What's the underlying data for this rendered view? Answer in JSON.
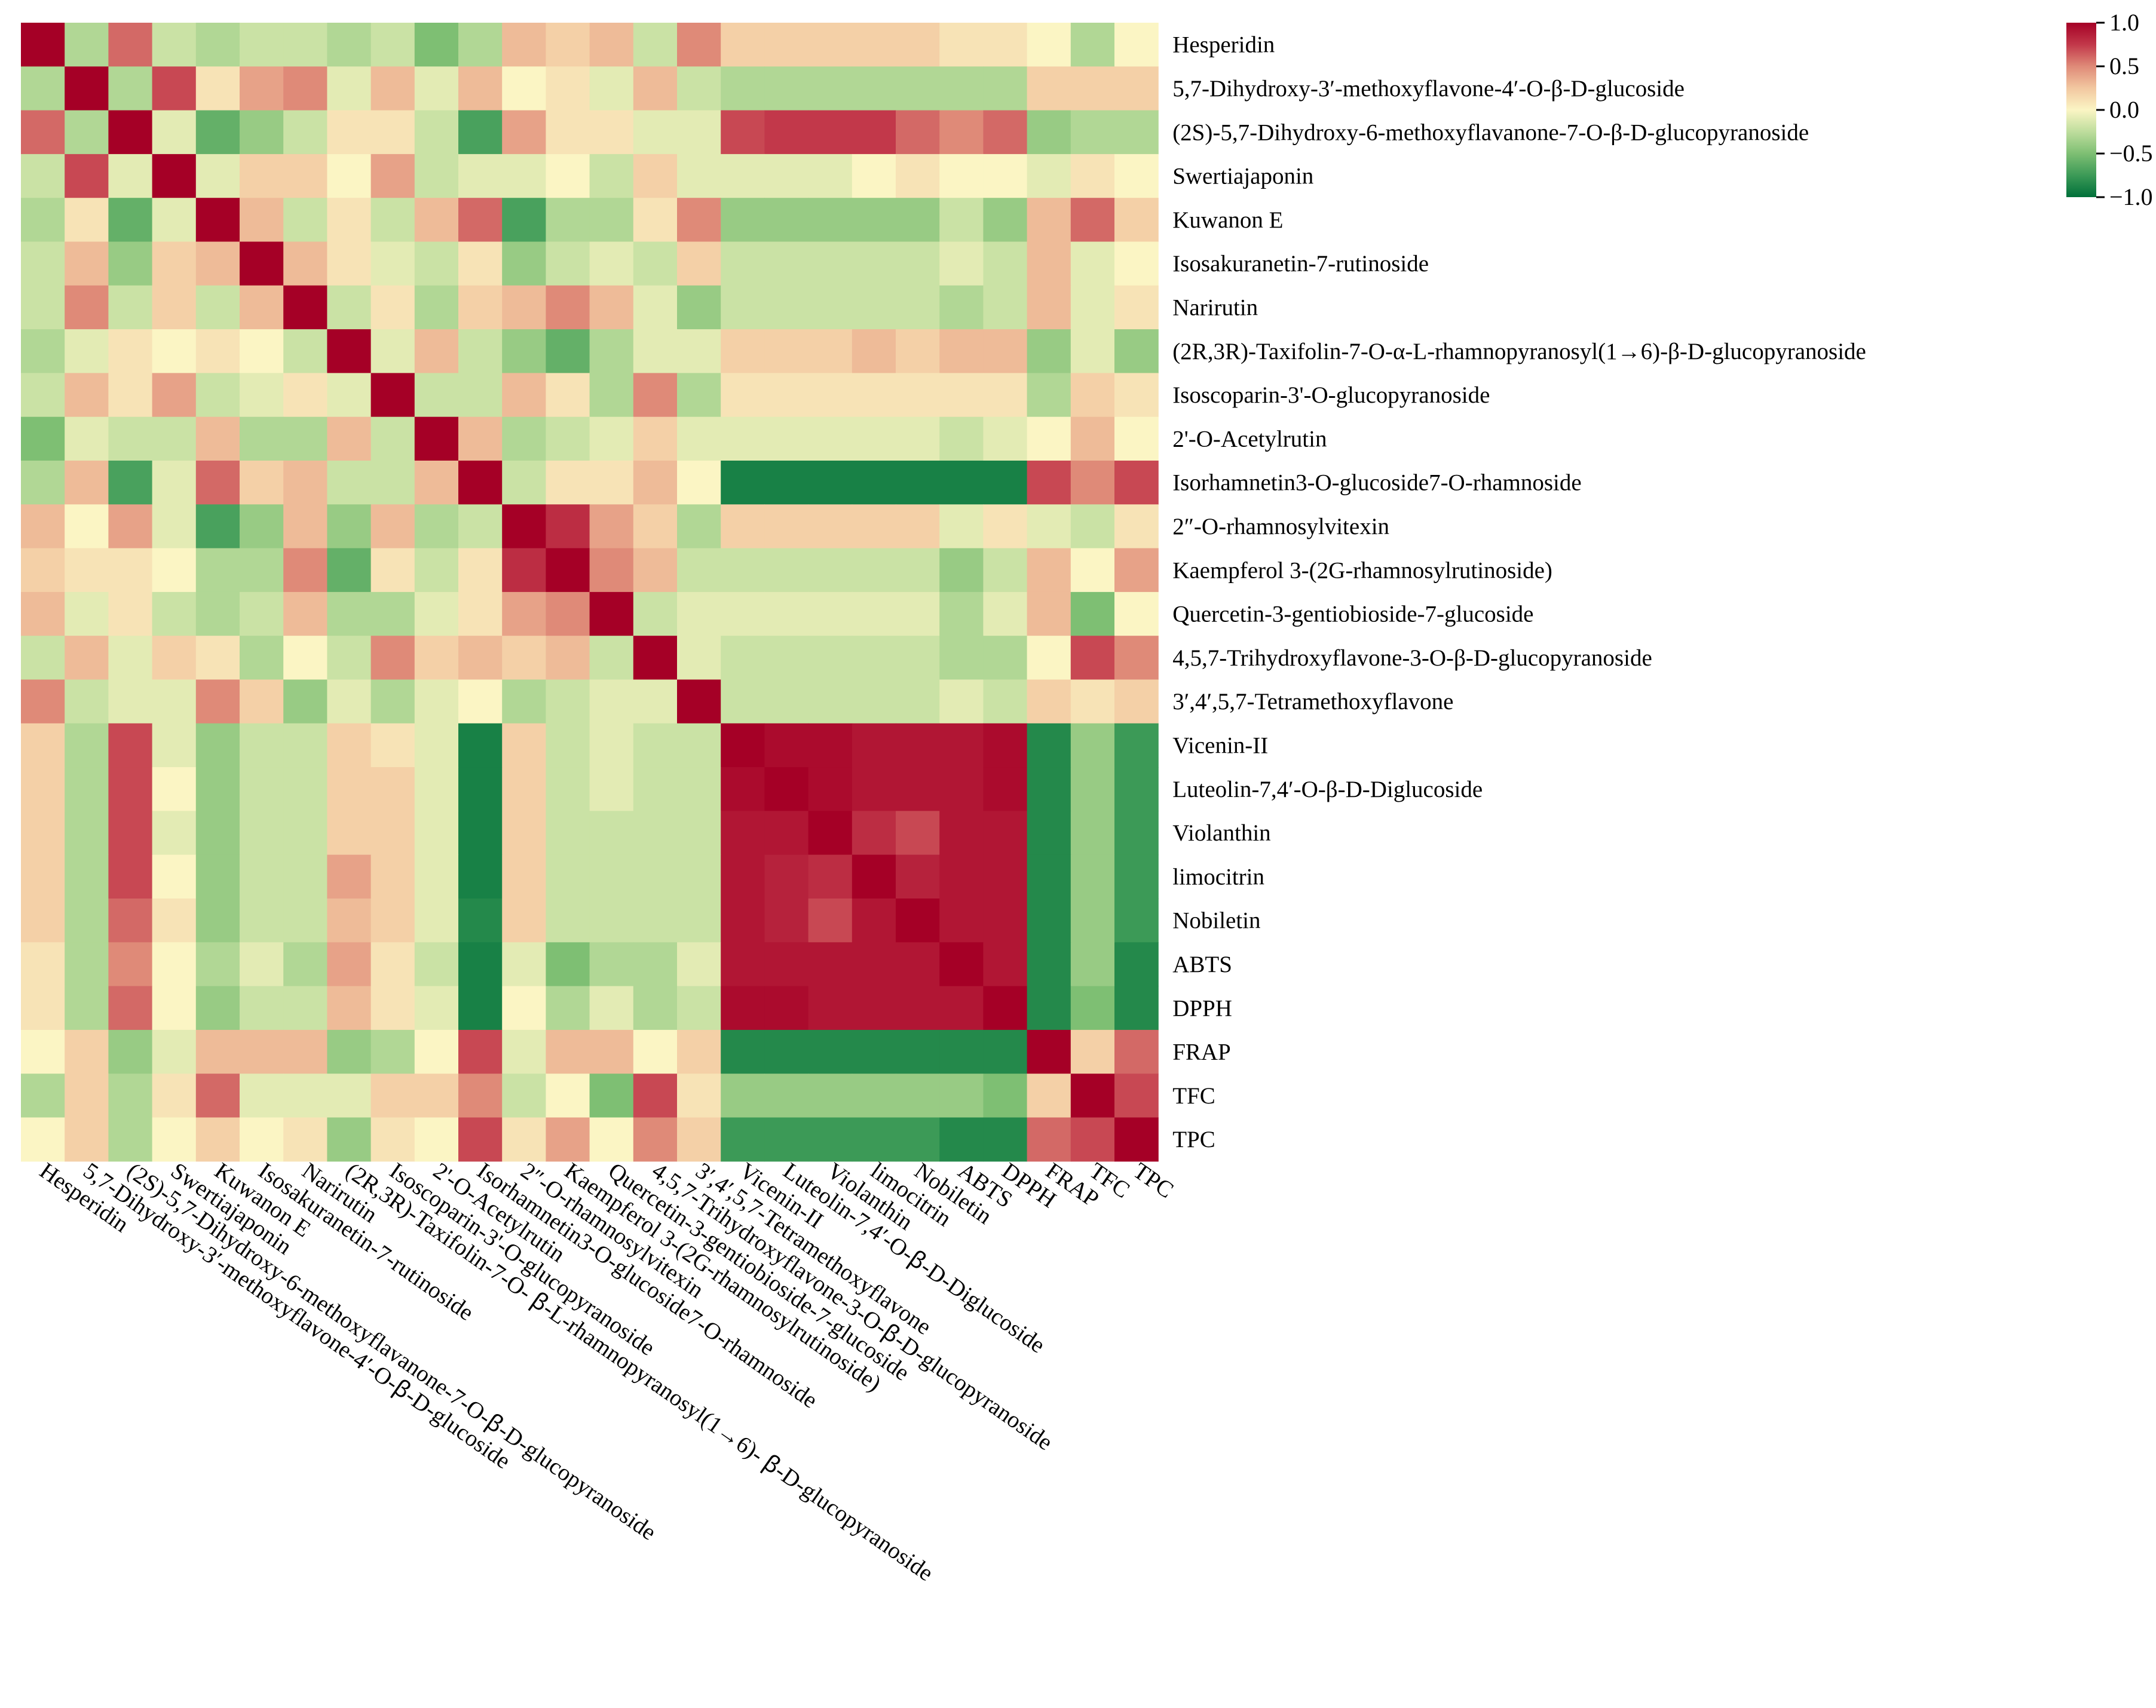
{
  "chart_data": {
    "type": "heatmap",
    "title": "",
    "xlabel": "",
    "ylabel": "",
    "labels_y": [
      "Hesperidin",
      "5,7-Dihydroxy-3′-methoxyflavone-4′-O-β-D-glucoside",
      "(2S)-5,7-Dihydroxy-6-methoxyflavanone-7-O-β-D-glucopyranoside",
      "Swertiajaponin",
      "Kuwanon  E",
      "Isosakuranetin-7-rutinoside",
      "Narirutin",
      "(2R,3R)-Taxifolin-7-O-α-L-rhamnopyranosyl(1→6)-β-D-glucopyranoside",
      "Isoscoparin-3'-O-glucopyranoside",
      "2'-O-Acetylrutin",
      "Isorhamnetin3-O-glucoside7-O-rhamnoside",
      "2″-O-rhamnosylvitexin",
      "Kaempferol  3-(2G-rhamnosylrutinoside)",
      "Quercetin-3-gentiobioside-7-glucoside",
      "4,5,7-Trihydroxyflavone-3-O-β-D-glucopyranoside",
      "3′,4′,5,7-Tetramethoxyflavone",
      "Vicenin-II",
      "Luteolin-7,4′-O-β-D-Diglucoside",
      "Violanthin",
      "limocitrin",
      "Nobiletin",
      "ABTS",
      "DPPH",
      "FRAP",
      "TFC",
      "TPC"
    ],
    "labels_x": [
      "Hesperidin",
      "5,7-Dihydroxy-3′-methoxyflavone-4′-O-ꞵ-D-glucoside",
      "(2S)-5,7-Dihydroxy-6-methoxyflavanone-7-O-ꞵ-D-glucopyranoside",
      "Swertiajaponin",
      "Kuwanon  E",
      "Isosakuranetin-7-rutinoside",
      "Narirutin",
      "(2R,3R)-Taxifolin-7-O- ꞵ-L-rhamnopyranosyl(1→6)- ꞵ-D-glucopyranoside",
      "Isoscoparin-3'-O-glucopyranoside",
      "2'-O-Acetylrutin",
      "Isorhamnetin3-O-glucoside7-O-rhamnoside",
      "2″-O-rhamnosylvitexin",
      "Kaempferol  3-(2G-rhamnosylrutinoside)",
      "Quercetin-3-gentiobioside-7-glucoside",
      "4,5,7-Trihydroxyflavone-3-O-ꞵ-D-glucopyranoside",
      "3′,4′,5,7-Tetramethoxyflavone",
      "Vicenin-II",
      "Luteolin-7,4′-O-ꞵ-D-Diglucoside",
      "Violanthin",
      "limocitrin",
      "Nobiletin",
      "ABTS",
      "DPPH",
      "FRAP",
      "TFC",
      "TPC"
    ],
    "values": [
      [
        1.0,
        -0.3,
        0.6,
        -0.2,
        -0.3,
        -0.2,
        -0.2,
        -0.3,
        -0.2,
        -0.5,
        -0.3,
        0.3,
        0.2,
        0.3,
        -0.2,
        0.5,
        0.2,
        0.2,
        0.2,
        0.2,
        0.2,
        0.1,
        0.1,
        0.0,
        -0.3,
        0.0
      ],
      [
        -0.3,
        1.0,
        -0.3,
        0.7,
        0.1,
        0.4,
        0.5,
        -0.1,
        0.3,
        -0.1,
        0.3,
        0.0,
        0.1,
        -0.1,
        0.3,
        -0.2,
        -0.3,
        -0.3,
        -0.3,
        -0.3,
        -0.3,
        -0.3,
        -0.3,
        0.2,
        0.2,
        0.2
      ],
      [
        0.6,
        -0.3,
        1.0,
        -0.1,
        -0.6,
        -0.4,
        -0.2,
        0.1,
        0.1,
        -0.2,
        -0.7,
        0.4,
        0.1,
        0.1,
        -0.1,
        -0.1,
        0.7,
        0.75,
        0.75,
        0.75,
        0.6,
        0.5,
        0.6,
        -0.4,
        -0.3,
        -0.3
      ],
      [
        -0.2,
        0.7,
        -0.1,
        1.0,
        -0.1,
        0.2,
        0.2,
        0.0,
        0.4,
        -0.2,
        -0.1,
        -0.1,
        0.0,
        -0.2,
        0.2,
        -0.1,
        -0.1,
        -0.1,
        -0.1,
        0.0,
        0.1,
        0.0,
        0.0,
        -0.1,
        0.1,
        0.0
      ],
      [
        -0.3,
        0.1,
        -0.6,
        -0.1,
        1.0,
        0.3,
        -0.2,
        0.1,
        -0.2,
        0.3,
        0.6,
        -0.7,
        -0.3,
        -0.3,
        0.1,
        0.5,
        -0.4,
        -0.4,
        -0.4,
        -0.4,
        -0.4,
        -0.2,
        -0.4,
        0.3,
        0.6,
        0.2
      ],
      [
        -0.2,
        0.3,
        -0.4,
        0.2,
        0.3,
        1.0,
        0.3,
        0.1,
        -0.1,
        -0.2,
        0.1,
        -0.4,
        -0.2,
        -0.1,
        -0.2,
        0.2,
        -0.2,
        -0.2,
        -0.2,
        -0.2,
        -0.2,
        -0.1,
        -0.2,
        0.3,
        -0.1,
        0.0
      ],
      [
        -0.2,
        0.5,
        -0.2,
        0.2,
        -0.2,
        0.3,
        1.0,
        -0.2,
        0.1,
        -0.3,
        0.2,
        0.3,
        0.5,
        0.3,
        -0.1,
        -0.4,
        -0.2,
        -0.2,
        -0.2,
        -0.2,
        -0.2,
        -0.3,
        -0.2,
        0.3,
        -0.1,
        0.1
      ],
      [
        -0.3,
        -0.1,
        0.1,
        0.0,
        0.1,
        0.0,
        -0.2,
        1.0,
        -0.1,
        0.3,
        -0.2,
        -0.4,
        -0.6,
        -0.3,
        -0.1,
        -0.1,
        0.2,
        0.2,
        0.2,
        0.3,
        0.2,
        0.3,
        0.3,
        -0.4,
        -0.1,
        -0.4
      ],
      [
        -0.2,
        0.3,
        0.1,
        0.4,
        -0.2,
        -0.1,
        0.1,
        -0.1,
        1.0,
        -0.2,
        -0.2,
        0.3,
        0.1,
        -0.3,
        0.5,
        -0.3,
        0.1,
        0.1,
        0.1,
        0.1,
        0.1,
        0.1,
        0.1,
        -0.3,
        0.2,
        0.1
      ],
      [
        -0.5,
        -0.1,
        -0.2,
        -0.2,
        0.3,
        -0.3,
        -0.3,
        0.3,
        -0.2,
        1.0,
        0.3,
        -0.3,
        -0.2,
        -0.1,
        0.2,
        -0.1,
        -0.1,
        -0.1,
        -0.1,
        -0.1,
        -0.1,
        -0.2,
        -0.1,
        0.0,
        0.3,
        0.0
      ],
      [
        -0.3,
        0.3,
        -0.7,
        -0.1,
        0.6,
        0.2,
        0.3,
        -0.2,
        -0.2,
        0.3,
        1.0,
        -0.2,
        0.1,
        0.1,
        0.3,
        0.0,
        -0.9,
        -0.9,
        -0.9,
        -0.9,
        -0.9,
        -0.9,
        -0.9,
        0.7,
        0.5,
        0.7
      ],
      [
        0.3,
        0.0,
        0.4,
        -0.1,
        -0.7,
        -0.4,
        0.3,
        -0.4,
        0.3,
        -0.3,
        -0.2,
        1.0,
        0.8,
        0.4,
        0.2,
        -0.3,
        0.2,
        0.2,
        0.2,
        0.2,
        0.2,
        -0.1,
        0.1,
        -0.1,
        -0.2,
        0.1
      ],
      [
        0.2,
        0.1,
        0.1,
        0.0,
        -0.3,
        -0.3,
        0.5,
        -0.6,
        0.1,
        -0.2,
        0.1,
        0.8,
        1.0,
        0.5,
        0.3,
        -0.2,
        -0.2,
        -0.2,
        -0.2,
        -0.2,
        -0.2,
        -0.4,
        -0.2,
        0.3,
        0.0,
        0.4
      ],
      [
        0.3,
        -0.1,
        0.1,
        -0.2,
        -0.3,
        -0.2,
        0.3,
        -0.3,
        -0.3,
        -0.1,
        0.1,
        0.4,
        0.5,
        1.0,
        -0.2,
        -0.1,
        -0.1,
        -0.1,
        -0.1,
        -0.1,
        -0.1,
        -0.3,
        -0.1,
        0.3,
        -0.5,
        0.0
      ],
      [
        -0.2,
        0.3,
        -0.1,
        0.2,
        0.1,
        -0.3,
        0.0,
        -0.2,
        0.5,
        0.2,
        0.3,
        0.2,
        0.3,
        -0.2,
        1.0,
        -0.1,
        -0.2,
        -0.2,
        -0.2,
        -0.2,
        -0.2,
        -0.3,
        -0.3,
        0.0,
        0.7,
        0.5
      ],
      [
        0.5,
        -0.2,
        -0.1,
        -0.1,
        0.5,
        0.2,
        -0.4,
        -0.1,
        -0.3,
        -0.1,
        0.0,
        -0.3,
        -0.2,
        -0.1,
        -0.1,
        1.0,
        -0.2,
        -0.2,
        -0.2,
        -0.2,
        -0.2,
        -0.1,
        -0.2,
        0.2,
        0.1,
        0.2
      ],
      [
        0.2,
        -0.3,
        0.7,
        -0.1,
        -0.4,
        -0.2,
        -0.2,
        0.2,
        0.1,
        -0.1,
        -0.9,
        0.2,
        -0.2,
        -0.1,
        -0.2,
        -0.2,
        1.0,
        0.95,
        0.95,
        0.9,
        0.9,
        0.9,
        0.95,
        -0.85,
        -0.4,
        -0.75
      ],
      [
        0.2,
        -0.3,
        0.7,
        0.0,
        -0.4,
        -0.2,
        -0.2,
        0.2,
        0.2,
        -0.1,
        -0.9,
        0.2,
        -0.2,
        -0.1,
        -0.2,
        -0.2,
        0.95,
        1.0,
        0.95,
        0.9,
        0.9,
        0.9,
        0.95,
        -0.85,
        -0.4,
        -0.75
      ],
      [
        0.2,
        -0.3,
        0.7,
        -0.1,
        -0.4,
        -0.2,
        -0.2,
        0.2,
        0.2,
        -0.1,
        -0.9,
        0.2,
        -0.2,
        -0.2,
        -0.2,
        -0.2,
        0.9,
        0.9,
        1.0,
        0.8,
        0.7,
        0.9,
        0.9,
        -0.85,
        -0.4,
        -0.75
      ],
      [
        0.2,
        -0.3,
        0.7,
        0.0,
        -0.4,
        -0.2,
        -0.2,
        0.4,
        0.2,
        -0.1,
        -0.9,
        0.2,
        -0.2,
        -0.2,
        -0.2,
        -0.2,
        0.9,
        0.85,
        0.8,
        1.0,
        0.85,
        0.9,
        0.9,
        -0.85,
        -0.4,
        -0.75
      ],
      [
        0.2,
        -0.3,
        0.6,
        0.1,
        -0.4,
        -0.2,
        -0.2,
        0.3,
        0.2,
        -0.1,
        -0.85,
        0.2,
        -0.2,
        -0.2,
        -0.2,
        -0.2,
        0.9,
        0.85,
        0.7,
        0.9,
        1.0,
        0.9,
        0.9,
        -0.85,
        -0.4,
        -0.75
      ],
      [
        0.1,
        -0.3,
        0.5,
        0.0,
        -0.3,
        -0.1,
        -0.3,
        0.4,
        0.1,
        -0.2,
        -0.9,
        -0.1,
        -0.5,
        -0.3,
        -0.3,
        -0.1,
        0.9,
        0.9,
        0.9,
        0.9,
        0.9,
        1.0,
        0.9,
        -0.85,
        -0.4,
        -0.85
      ],
      [
        0.1,
        -0.3,
        0.6,
        0.0,
        -0.4,
        -0.2,
        -0.2,
        0.3,
        0.1,
        -0.1,
        -0.9,
        0.0,
        -0.3,
        -0.1,
        -0.3,
        -0.2,
        0.95,
        0.95,
        0.9,
        0.9,
        0.9,
        0.9,
        1.0,
        -0.85,
        -0.5,
        -0.85
      ],
      [
        0.0,
        0.2,
        -0.4,
        -0.1,
        0.3,
        0.3,
        0.3,
        -0.4,
        -0.3,
        0.0,
        0.7,
        -0.1,
        0.3,
        0.3,
        0.0,
        0.2,
        -0.85,
        -0.85,
        -0.85,
        -0.85,
        -0.85,
        -0.85,
        -0.85,
        1.0,
        0.2,
        0.6
      ],
      [
        -0.3,
        0.2,
        -0.3,
        0.1,
        0.6,
        -0.1,
        -0.1,
        -0.1,
        0.2,
        0.2,
        0.5,
        -0.2,
        0.0,
        -0.5,
        0.7,
        0.1,
        -0.4,
        -0.4,
        -0.4,
        -0.4,
        -0.4,
        -0.4,
        -0.5,
        0.2,
        1.0,
        0.7
      ],
      [
        0.0,
        0.2,
        -0.3,
        0.0,
        0.2,
        0.0,
        0.1,
        -0.4,
        0.1,
        0.0,
        0.7,
        0.1,
        0.4,
        0.0,
        0.5,
        0.2,
        -0.75,
        -0.75,
        -0.75,
        -0.75,
        -0.75,
        -0.85,
        -0.85,
        0.6,
        0.7,
        1.0
      ]
    ],
    "colorbar": {
      "ticks": [
        "1.0",
        "0.5",
        "0.0",
        "−0.5",
        "−1.0"
      ],
      "range": [
        -1.0,
        1.0
      ],
      "colors": [
        "#006837",
        "#a6d96a",
        "#ffffbf",
        "#fdae61",
        "#a50026"
      ]
    },
    "colormap_stops": [
      [
        -1.0,
        "#00703a"
      ],
      [
        -0.75,
        "#3c9a57"
      ],
      [
        -0.5,
        "#7ebf73"
      ],
      [
        -0.25,
        "#bedd9d"
      ],
      [
        0.0,
        "#fbf5c4"
      ],
      [
        0.25,
        "#f2c7a0"
      ],
      [
        0.5,
        "#df8a78"
      ],
      [
        0.75,
        "#c2384a"
      ],
      [
        1.0,
        "#a50026"
      ]
    ]
  }
}
